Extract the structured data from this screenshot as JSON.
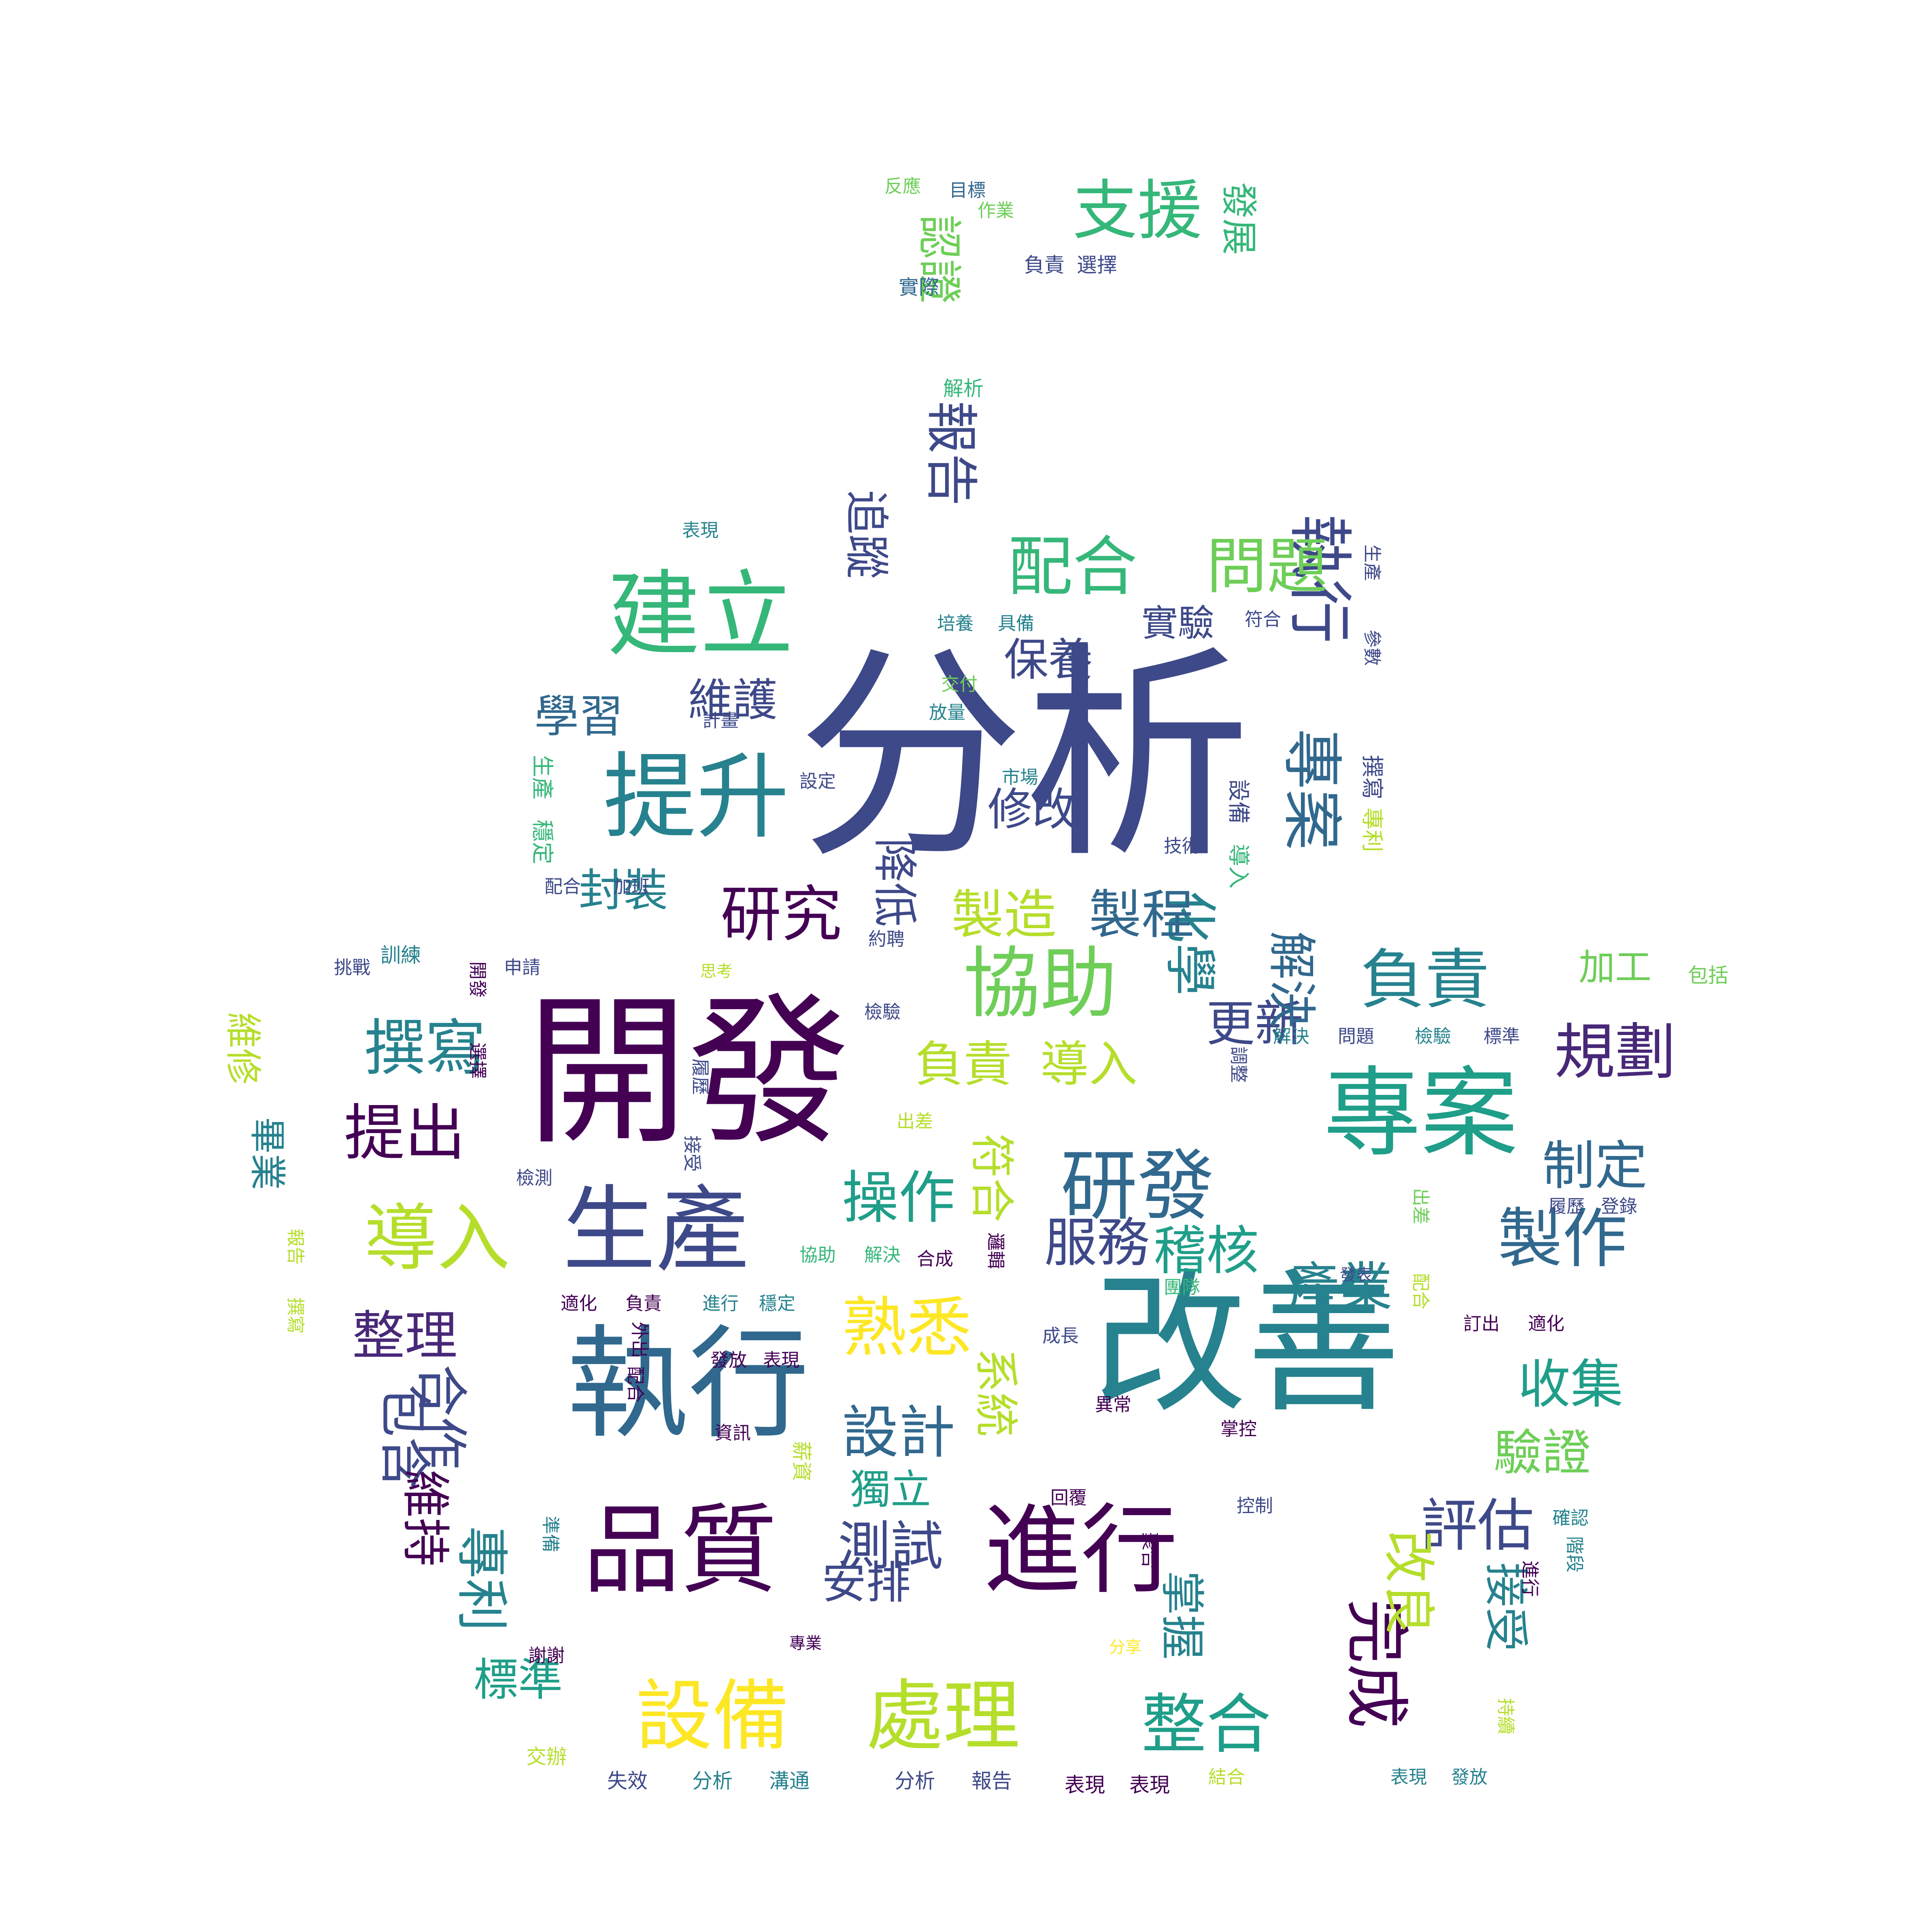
{
  "palette": {
    "background": "#ffffff",
    "viridis": [
      "#440154",
      "#482878",
      "#3e4989",
      "#31688e",
      "#26828e",
      "#1f9e89",
      "#35b779",
      "#6ece58",
      "#b5de2b",
      "#fde725"
    ]
  },
  "words": [
    {
      "text": "分析",
      "weight": 1.0,
      "color": "#3e4989"
    },
    {
      "text": "開發",
      "weight": 0.93,
      "color": "#440154"
    },
    {
      "text": "改善",
      "weight": 0.9,
      "color": "#26828e"
    },
    {
      "text": "執行",
      "weight": 0.84,
      "color": "#31688e"
    },
    {
      "text": "專案",
      "weight": 0.7,
      "color": "#1f9e89"
    },
    {
      "text": "生產",
      "weight": 0.69,
      "color": "#3e4989"
    },
    {
      "text": "提升",
      "weight": 0.65,
      "color": "#26828e"
    },
    {
      "text": "建立",
      "weight": 0.64,
      "color": "#35b779"
    },
    {
      "text": "品質",
      "weight": 0.63,
      "color": "#440154"
    },
    {
      "text": "進行",
      "weight": 0.62,
      "color": "#440154"
    },
    {
      "text": "設備",
      "weight": 0.56,
      "color": "#fde725"
    },
    {
      "text": "處理",
      "weight": 0.56,
      "color": "#b5de2b"
    },
    {
      "text": "協助",
      "weight": 0.53,
      "color": "#6ece58"
    },
    {
      "text": "研發",
      "weight": 0.51,
      "color": "#31688e"
    },
    {
      "text": "完成",
      "weight": 0.5,
      "color": "#440154"
    },
    {
      "text": "導入",
      "weight": 0.48,
      "color": "#b5de2b"
    },
    {
      "text": "負責",
      "weight": 0.46,
      "color": "#26828e"
    },
    {
      "text": "配合",
      "weight": 0.45,
      "color": "#35b779"
    },
    {
      "text": "執行",
      "weight": 0.44,
      "color": "#3e4989"
    },
    {
      "text": "製作",
      "weight": 0.43,
      "color": "#31688e"
    },
    {
      "text": "熟悉",
      "weight": 0.43,
      "color": "#fde725"
    },
    {
      "text": "整合",
      "weight": 0.42,
      "color": "#1f9e89"
    },
    {
      "text": "研究",
      "weight": 0.41,
      "color": "#440154"
    },
    {
      "text": "問題",
      "weight": 0.4,
      "color": "#6ece58"
    },
    {
      "text": "撰寫",
      "weight": 0.39,
      "color": "#26828e"
    },
    {
      "text": "規劃",
      "weight": 0.38,
      "color": "#482878"
    },
    {
      "text": "支援",
      "weight": 0.37,
      "color": "#35b779"
    },
    {
      "text": "專案",
      "weight": 0.36,
      "color": "#31688e"
    },
    {
      "text": "提出",
      "weight": 0.35,
      "color": "#440154"
    },
    {
      "text": "操作",
      "weight": 0.34,
      "color": "#1f9e89"
    },
    {
      "text": "設計",
      "weight": 0.33,
      "color": "#31688e"
    },
    {
      "text": "評估",
      "weight": 0.32,
      "color": "#3e4989"
    },
    {
      "text": "化學",
      "weight": 0.31,
      "color": "#26828e"
    },
    {
      "text": "制定",
      "weight": 0.3,
      "color": "#31688e"
    },
    {
      "text": "收集",
      "weight": 0.3,
      "color": "#1f9e89"
    },
    {
      "text": "整理",
      "weight": 0.29,
      "color": "#482878"
    },
    {
      "text": "專利",
      "weight": 0.29,
      "color": "#26828e"
    },
    {
      "text": "測試",
      "weight": 0.28,
      "color": "#3e4989"
    },
    {
      "text": "報告",
      "weight": 0.28,
      "color": "#3e4989"
    },
    {
      "text": "包含",
      "weight": 0.28,
      "color": "#3e4989"
    },
    {
      "text": "合作",
      "weight": 0.28,
      "color": "#3e4989"
    },
    {
      "text": "改良",
      "weight": 0.27,
      "color": "#b5de2b"
    },
    {
      "text": "製造",
      "weight": 0.26,
      "color": "#b5de2b"
    },
    {
      "text": "製程",
      "weight": 0.26,
      "color": "#31688e"
    },
    {
      "text": "服務",
      "weight": 0.25,
      "color": "#3e4989"
    },
    {
      "text": "稽核",
      "weight": 0.25,
      "color": "#1f9e89"
    },
    {
      "text": "產業",
      "weight": 0.25,
      "color": "#26828e"
    },
    {
      "text": "負責",
      "weight": 0.24,
      "color": "#b5de2b"
    },
    {
      "text": "導入",
      "weight": 0.24,
      "color": "#b5de2b"
    },
    {
      "text": "更新",
      "weight": 0.24,
      "color": "#3e4989"
    },
    {
      "text": "解決",
      "weight": 0.23,
      "color": "#31688e"
    },
    {
      "text": "驗證",
      "weight": 0.23,
      "color": "#6ece58"
    },
    {
      "text": "維持",
      "weight": 0.22,
      "color": "#440154"
    },
    {
      "text": "標準",
      "weight": 0.22,
      "color": "#1f9e89"
    },
    {
      "text": "學習",
      "weight": 0.22,
      "color": "#31688e"
    },
    {
      "text": "維護",
      "weight": 0.22,
      "color": "#3e4989"
    },
    {
      "text": "追蹤",
      "weight": 0.22,
      "color": "#3e4989"
    },
    {
      "text": "接受",
      "weight": 0.21,
      "color": "#26828e"
    },
    {
      "text": "掌握",
      "weight": 0.21,
      "color": "#26828e"
    },
    {
      "text": "安排",
      "weight": 0.2,
      "color": "#3e4989"
    },
    {
      "text": "封裝",
      "weight": 0.2,
      "color": "#26828e"
    },
    {
      "text": "降低",
      "weight": 0.19,
      "color": "#3e4989"
    },
    {
      "text": "修改",
      "weight": 0.18,
      "color": "#3e4989"
    },
    {
      "text": "保養",
      "weight": 0.19,
      "color": "#3e4989"
    },
    {
      "text": "認證",
      "weight": 0.19,
      "color": "#6ece58"
    },
    {
      "text": "符合",
      "weight": 0.18,
      "color": "#b5de2b"
    },
    {
      "text": "系統",
      "weight": 0.18,
      "color": "#b5de2b"
    },
    {
      "text": "獨立",
      "weight": 0.17,
      "color": "#1f9e89"
    },
    {
      "text": "加工",
      "weight": 0.17,
      "color": "#6ece58"
    },
    {
      "text": "發展",
      "weight": 0.17,
      "color": "#35b779"
    },
    {
      "text": "維修",
      "weight": 0.16,
      "color": "#b5de2b"
    },
    {
      "text": "畢業",
      "weight": 0.16,
      "color": "#26828e"
    },
    {
      "text": "實驗",
      "weight": 0.15,
      "color": "#3e4989"
    },
    {
      "text": "訓練",
      "weight": 0.09,
      "color": "#26828e"
    },
    {
      "text": "包括",
      "weight": 0.09,
      "color": "#6ece58"
    },
    {
      "text": "負責",
      "weight": 0.08,
      "color": "#3e4989"
    },
    {
      "text": "選擇",
      "weight": 0.08,
      "color": "#3e4989"
    },
    {
      "text": "實際",
      "weight": 0.08,
      "color": "#31688e"
    },
    {
      "text": "解析",
      "weight": 0.08,
      "color": "#35b779"
    },
    {
      "text": "目標",
      "weight": 0.06,
      "color": "#31688e"
    },
    {
      "text": "反應",
      "weight": 0.06,
      "color": "#6ece58"
    },
    {
      "text": "作業",
      "weight": 0.06,
      "color": "#6ece58"
    },
    {
      "text": "表現",
      "weight": 0.05,
      "color": "#26828e"
    },
    {
      "text": "培養",
      "weight": 0.05,
      "color": "#26828e"
    },
    {
      "text": "具備",
      "weight": 0.05,
      "color": "#26828e"
    },
    {
      "text": "符合",
      "weight": 0.05,
      "color": "#3e4989"
    },
    {
      "text": "生產",
      "weight": 0.05,
      "color": "#3e4989"
    },
    {
      "text": "參數",
      "weight": 0.05,
      "color": "#3e4989"
    },
    {
      "text": "交付",
      "weight": 0.05,
      "color": "#6ece58"
    },
    {
      "text": "放量",
      "weight": 0.05,
      "color": "#26828e"
    },
    {
      "text": "計畫",
      "weight": 0.05,
      "color": "#3e4989"
    },
    {
      "text": "生產",
      "weight": 0.06,
      "color": "#35b779"
    },
    {
      "text": "設定",
      "weight": 0.06,
      "color": "#3e4989"
    },
    {
      "text": "市場",
      "weight": 0.05,
      "color": "#26828e"
    },
    {
      "text": "穩定",
      "weight": 0.06,
      "color": "#35b779"
    },
    {
      "text": "設備",
      "weight": 0.06,
      "color": "#3e4989"
    },
    {
      "text": "撰寫",
      "weight": 0.06,
      "color": "#3e4989"
    },
    {
      "text": "專利",
      "weight": 0.06,
      "color": "#b5de2b"
    },
    {
      "text": "配合",
      "weight": 0.06,
      "color": "#3e4989"
    },
    {
      "text": "加班",
      "weight": 0.06,
      "color": "#3e4989"
    },
    {
      "text": "技術",
      "weight": 0.05,
      "color": "#3e4989"
    },
    {
      "text": "導入",
      "weight": 0.05,
      "color": "#35b779"
    },
    {
      "text": "挑戰",
      "weight": 0.05,
      "color": "#3e4989"
    },
    {
      "text": "開發",
      "weight": 0.06,
      "color": "#440154"
    },
    {
      "text": "申請",
      "weight": 0.05,
      "color": "#3e4989"
    },
    {
      "text": "思考",
      "weight": 0.04,
      "color": "#b5de2b"
    },
    {
      "text": "約聘",
      "weight": 0.05,
      "color": "#3e4989"
    },
    {
      "text": "檢驗",
      "weight": 0.05,
      "color": "#3e4989"
    },
    {
      "text": "選擇",
      "weight": 0.06,
      "color": "#440154"
    },
    {
      "text": "解決",
      "weight": 0.06,
      "color": "#26828e"
    },
    {
      "text": "問題",
      "weight": 0.06,
      "color": "#3e4989"
    },
    {
      "text": "檢驗",
      "weight": 0.06,
      "color": "#26828e"
    },
    {
      "text": "標準",
      "weight": 0.06,
      "color": "#3e4989"
    },
    {
      "text": "調整",
      "weight": 0.05,
      "color": "#3e4989"
    },
    {
      "text": "出差",
      "weight": 0.05,
      "color": "#b5de2b"
    },
    {
      "text": "接受",
      "weight": 0.05,
      "color": "#3e4989"
    },
    {
      "text": "履歷",
      "weight": 0.05,
      "color": "#3e4989"
    },
    {
      "text": "檢測",
      "weight": 0.06,
      "color": "#3e4989"
    },
    {
      "text": "報告",
      "weight": 0.06,
      "color": "#b5de2b"
    },
    {
      "text": "撰寫",
      "weight": 0.06,
      "color": "#b5de2b"
    },
    {
      "text": "協助",
      "weight": 0.06,
      "color": "#35b779"
    },
    {
      "text": "解決",
      "weight": 0.06,
      "color": "#35b779"
    },
    {
      "text": "合成",
      "weight": 0.05,
      "color": "#440154"
    },
    {
      "text": "邏輯",
      "weight": 0.05,
      "color": "#440154"
    },
    {
      "text": "出差",
      "weight": 0.05,
      "color": "#6ece58"
    },
    {
      "text": "履歷",
      "weight": 0.05,
      "color": "#3e4989"
    },
    {
      "text": "登錄",
      "weight": 0.05,
      "color": "#3e4989"
    },
    {
      "text": "配合",
      "weight": 0.05,
      "color": "#b5de2b"
    },
    {
      "text": "發表",
      "weight": 0.04,
      "color": "#3e4989"
    },
    {
      "text": "適化",
      "weight": 0.06,
      "color": "#440154"
    },
    {
      "text": "負責",
      "weight": 0.06,
      "color": "#440154"
    },
    {
      "text": "進行",
      "weight": 0.06,
      "color": "#26828e"
    },
    {
      "text": "穩定",
      "weight": 0.06,
      "color": "#26828e"
    },
    {
      "text": "團隊",
      "weight": 0.05,
      "color": "#35b779"
    },
    {
      "text": "訂出",
      "weight": 0.06,
      "color": "#440154"
    },
    {
      "text": "適化",
      "weight": 0.06,
      "color": "#440154"
    },
    {
      "text": "外出",
      "weight": 0.05,
      "color": "#440154"
    },
    {
      "text": "配合",
      "weight": 0.05,
      "color": "#440154"
    },
    {
      "text": "發放",
      "weight": 0.05,
      "color": "#440154"
    },
    {
      "text": "表現",
      "weight": 0.05,
      "color": "#440154"
    },
    {
      "text": "成長",
      "weight": 0.06,
      "color": "#3e4989"
    },
    {
      "text": "異常",
      "weight": 0.06,
      "color": "#440154"
    },
    {
      "text": "掌控",
      "weight": 0.06,
      "color": "#440154"
    },
    {
      "text": "資訊",
      "weight": 0.05,
      "color": "#440154"
    },
    {
      "text": "薪資",
      "weight": 0.05,
      "color": "#b5de2b"
    },
    {
      "text": "回覆",
      "weight": 0.05,
      "color": "#440154"
    },
    {
      "text": "控制",
      "weight": 0.06,
      "color": "#3e4989"
    },
    {
      "text": "確認",
      "weight": 0.05,
      "color": "#26828e"
    },
    {
      "text": "準備",
      "weight": 0.05,
      "color": "#26828e"
    },
    {
      "text": "聚合",
      "weight": 0.05,
      "color": "#440154"
    },
    {
      "text": "階段",
      "weight": 0.05,
      "color": "#26828e"
    },
    {
      "text": "進行",
      "weight": 0.05,
      "color": "#440154"
    },
    {
      "text": "謝謝",
      "weight": 0.05,
      "color": "#440154"
    },
    {
      "text": "專業",
      "weight": 0.04,
      "color": "#440154"
    },
    {
      "text": "分享",
      "weight": 0.04,
      "color": "#fde725"
    },
    {
      "text": "持續",
      "weight": 0.05,
      "color": "#b5de2b"
    },
    {
      "text": "交辦",
      "weight": 0.06,
      "color": "#b5de2b"
    },
    {
      "text": "失效",
      "weight": 0.06,
      "color": "#3e4989"
    },
    {
      "text": "分析",
      "weight": 0.06,
      "color": "#26828e"
    },
    {
      "text": "溝通",
      "weight": 0.06,
      "color": "#26828e"
    },
    {
      "text": "分析",
      "weight": 0.06,
      "color": "#3e4989"
    },
    {
      "text": "報告",
      "weight": 0.06,
      "color": "#3e4989"
    },
    {
      "text": "表現",
      "weight": 0.06,
      "color": "#440154"
    },
    {
      "text": "表現",
      "weight": 0.06,
      "color": "#440154"
    },
    {
      "text": "結合",
      "weight": 0.05,
      "color": "#b5de2b"
    },
    {
      "text": "表現",
      "weight": 0.05,
      "color": "#26828e"
    },
    {
      "text": "發放",
      "weight": 0.05,
      "color": "#26828e"
    }
  ]
}
